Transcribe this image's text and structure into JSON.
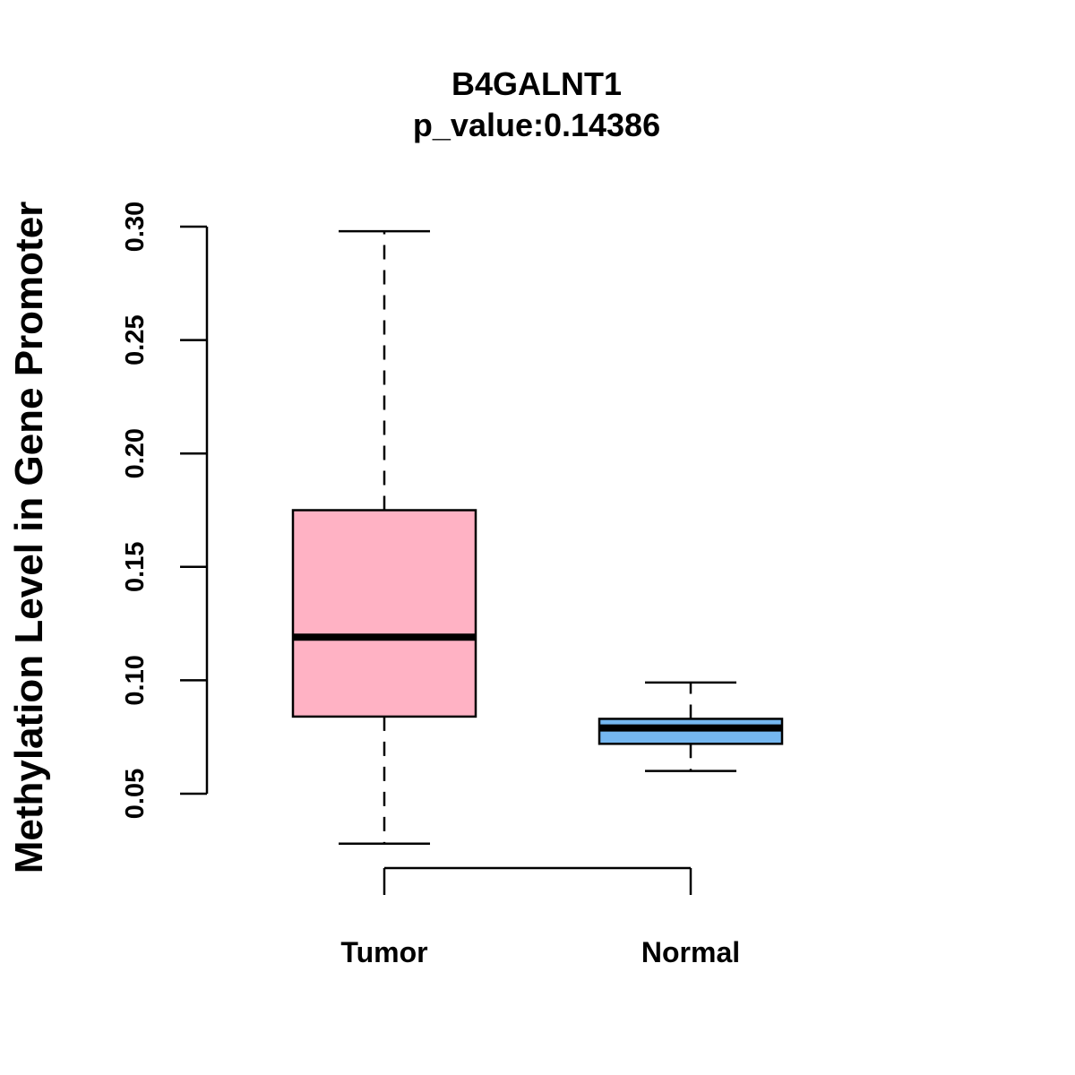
{
  "chart_data": {
    "type": "boxplot",
    "title": "B4GALNT1",
    "subtitle": "p_value:0.14386",
    "xlabel": "",
    "ylabel": "Methylation Level in Gene Promoter",
    "ylim": [
      0.05,
      0.3
    ],
    "yticks": [
      0.05,
      0.1,
      0.15,
      0.2,
      0.25,
      0.3
    ],
    "ytick_labels": [
      "0.05",
      "0.10",
      "0.15",
      "0.20",
      "0.25",
      "0.30"
    ],
    "grid": false,
    "categories": [
      "Tumor",
      "Normal"
    ],
    "series": [
      {
        "name": "Tumor",
        "whisker_low": 0.028,
        "q1": 0.084,
        "median": 0.119,
        "q3": 0.175,
        "whisker_high": 0.298,
        "color": "#FFB2C4"
      },
      {
        "name": "Normal",
        "whisker_low": 0.06,
        "q1": 0.072,
        "median": 0.079,
        "q3": 0.083,
        "whisker_high": 0.099,
        "color": "#75B7F0"
      }
    ]
  }
}
